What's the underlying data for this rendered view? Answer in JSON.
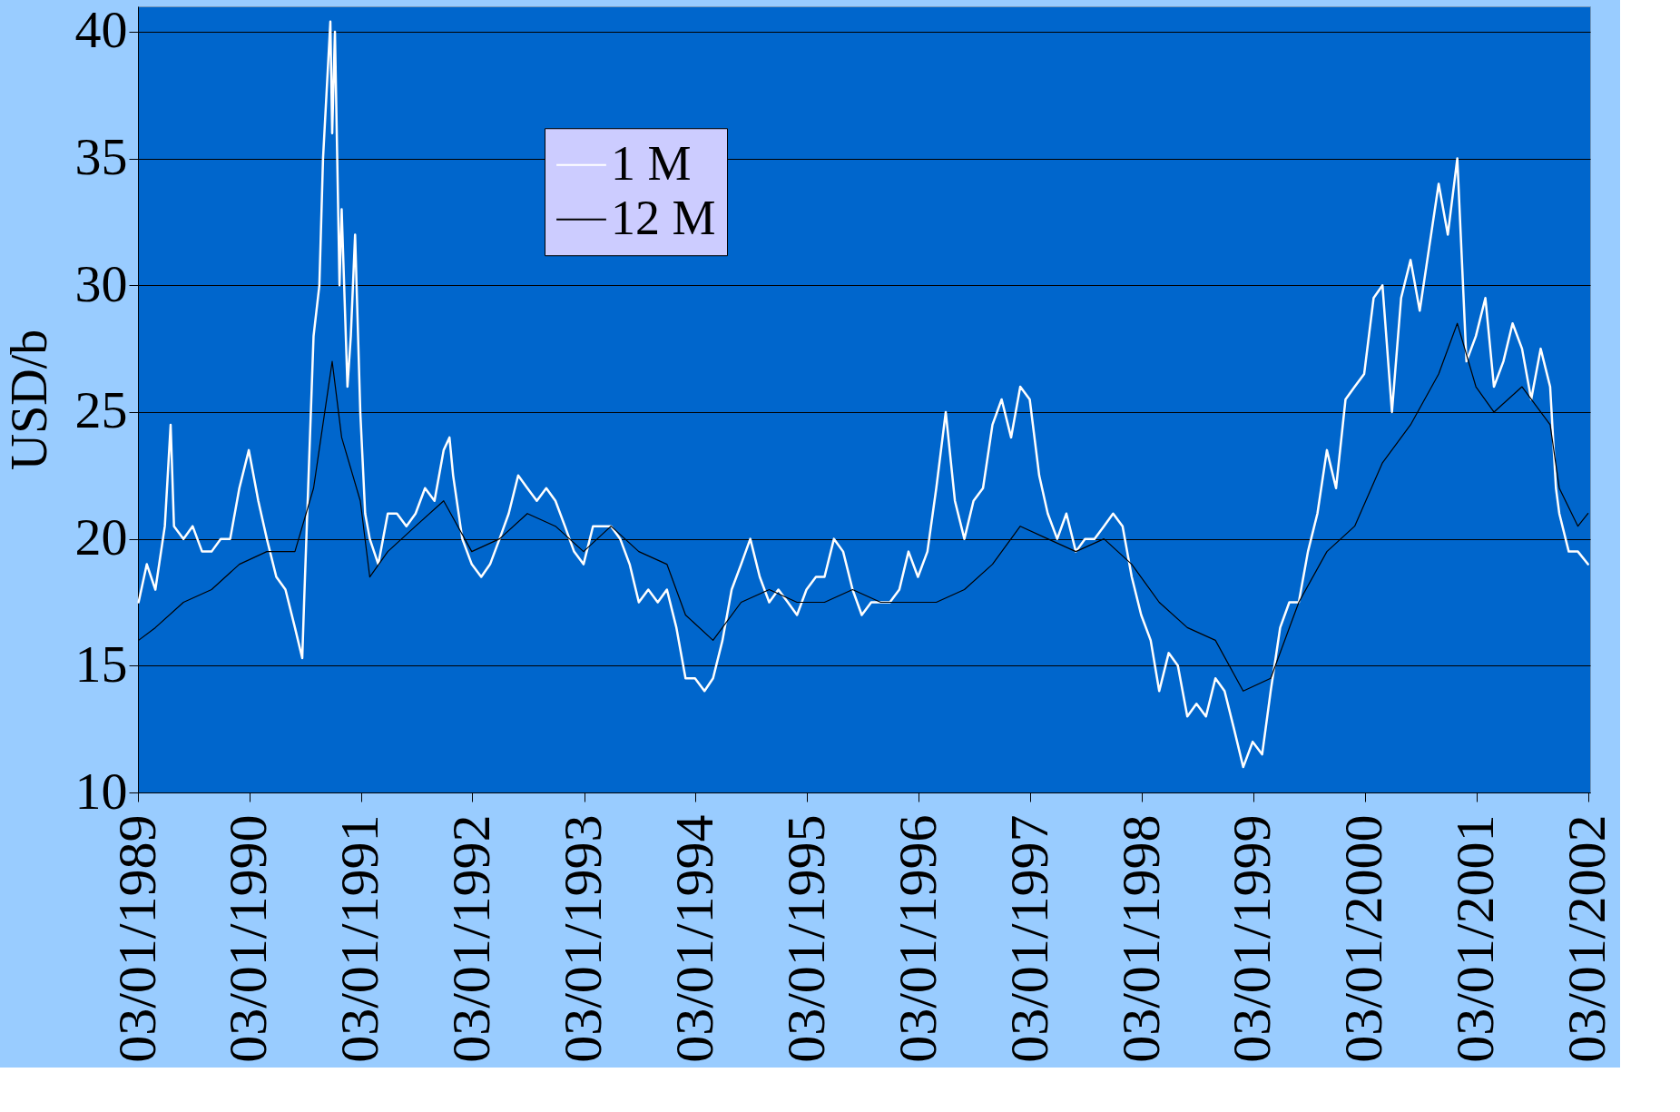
{
  "chart_data": {
    "type": "line",
    "ylabel": "USD/b",
    "legend": "top left",
    "grid": "y",
    "line_style": "solid",
    "marker": "none",
    "xlim": [
      "1989-01-03",
      "2002-01-10"
    ],
    "xticks": [
      {
        "value": "1989-01-03",
        "label": "03/01/1989"
      },
      {
        "value": "1990-01-03",
        "label": "03/01/1990"
      },
      {
        "value": "1991-01-03",
        "label": "03/01/1991"
      },
      {
        "value": "1992-01-03",
        "label": "03/01/1992"
      },
      {
        "value": "1993-01-03",
        "label": "03/01/1993"
      },
      {
        "value": "1994-01-03",
        "label": "03/01/1994"
      },
      {
        "value": "1995-01-03",
        "label": "03/01/1995"
      },
      {
        "value": "1996-01-03",
        "label": "03/01/1996"
      },
      {
        "value": "1997-01-03",
        "label": "03/01/1997"
      },
      {
        "value": "1998-01-03",
        "label": "03/01/1998"
      },
      {
        "value": "1999-01-03",
        "label": "03/01/1999"
      },
      {
        "value": "2000-01-03",
        "label": "03/01/2000"
      },
      {
        "value": "2001-01-03",
        "label": "03/01/2001"
      },
      {
        "value": "2002-01-03",
        "label": "03/01/2002"
      }
    ],
    "ylim": [
      10,
      41
    ],
    "yticks": [
      10,
      15,
      20,
      25,
      30,
      35,
      40
    ],
    "series": [
      {
        "name": "1 M",
        "color": "#ffffff",
        "x": [
          "1989-01-05",
          "1989-02",
          "1989-03",
          "1989-04",
          "1989-04-20",
          "1989-05",
          "1989-06",
          "1989-07",
          "1989-08",
          "1989-09",
          "1989-10",
          "1989-11",
          "1989-12",
          "1990-01",
          "1990-02",
          "1990-03",
          "1990-04",
          "1990-05",
          "1990-06",
          "1990-06-25",
          "1990-07",
          "1990-08",
          "1990-08-20",
          "1990-09",
          "1990-09-25",
          "1990-10",
          "1990-10-10",
          "1990-10-25",
          "1990-11",
          "1990-11-20",
          "1990-12",
          "1990-12-15",
          "1991-01",
          "1991-01-17",
          "1991-02",
          "1991-03",
          "1991-04",
          "1991-05",
          "1991-06",
          "1991-07",
          "1991-08",
          "1991-09",
          "1991-10",
          "1991-10-20",
          "1991-11",
          "1991-12",
          "1992-01",
          "1992-02",
          "1992-03",
          "1992-04",
          "1992-05",
          "1992-06",
          "1992-07",
          "1992-08",
          "1992-09",
          "1992-10",
          "1992-11",
          "1992-12",
          "1993-01",
          "1993-02",
          "1993-03",
          "1993-04",
          "1993-05",
          "1993-06",
          "1993-07",
          "1993-08",
          "1993-09",
          "1993-10",
          "1993-11",
          "1993-12",
          "1994-01",
          "1994-02",
          "1994-03",
          "1994-04",
          "1994-05",
          "1994-06",
          "1994-07",
          "1994-08",
          "1994-09",
          "1994-10",
          "1994-11",
          "1994-12",
          "1995-01",
          "1995-02",
          "1995-03",
          "1995-04",
          "1995-05",
          "1995-06",
          "1995-07",
          "1995-08",
          "1995-09",
          "1995-10",
          "1995-11",
          "1995-12",
          "1996-01",
          "1996-02",
          "1996-03",
          "1996-04",
          "1996-05",
          "1996-06",
          "1996-07",
          "1996-08",
          "1996-09",
          "1996-10",
          "1996-11",
          "1996-12",
          "1997-01",
          "1997-02",
          "1997-03",
          "1997-04",
          "1997-05",
          "1997-06",
          "1997-07",
          "1997-08",
          "1997-09",
          "1997-10",
          "1997-11",
          "1997-12",
          "1998-01",
          "1998-02",
          "1998-03",
          "1998-04",
          "1998-05",
          "1998-06",
          "1998-07",
          "1998-08",
          "1998-09",
          "1998-10",
          "1998-11",
          "1998-12",
          "1999-01",
          "1999-02",
          "1999-03",
          "1999-04",
          "1999-05",
          "1999-06",
          "1999-07",
          "1999-08",
          "1999-09",
          "1999-10",
          "1999-11",
          "1999-12",
          "2000-01",
          "2000-02",
          "2000-03",
          "2000-04",
          "2000-05",
          "2000-06",
          "2000-07",
          "2000-08",
          "2000-09",
          "2000-10",
          "2000-11",
          "2000-12",
          "2001-01",
          "2001-02",
          "2001-03",
          "2001-04",
          "2001-05",
          "2001-06",
          "2001-07",
          "2001-08",
          "2001-09",
          "2001-09-20",
          "2001-10",
          "2001-11",
          "2001-12",
          "2002-01-03"
        ],
        "values": [
          17.5,
          19,
          18,
          20.5,
          24.5,
          20.5,
          20,
          20.5,
          19.5,
          19.5,
          20,
          20,
          22,
          23.5,
          21.5,
          20,
          18.5,
          18,
          16.5,
          15.3,
          17.5,
          28,
          30,
          35,
          40.4,
          36,
          40,
          30,
          33,
          26,
          28,
          32,
          25,
          21,
          20,
          19,
          21,
          21,
          20.5,
          21,
          22,
          21.5,
          23.5,
          24,
          22.5,
          20,
          19,
          18.5,
          19,
          20,
          21,
          22.5,
          22,
          21.5,
          22,
          21.5,
          20.5,
          19.5,
          19,
          20.5,
          20.5,
          20.5,
          20,
          19,
          17.5,
          18,
          17.5,
          18,
          16.5,
          14.5,
          14.5,
          14,
          14.5,
          16,
          18,
          19,
          20,
          18.5,
          17.5,
          18,
          17.5,
          17,
          18,
          18.5,
          18.5,
          20,
          19.5,
          18,
          17,
          17.5,
          17.5,
          17.5,
          18,
          19.5,
          18.5,
          19.5,
          22,
          25,
          21.5,
          20,
          21.5,
          22,
          24.5,
          25.5,
          24,
          26,
          25.5,
          22.5,
          21,
          20,
          21,
          19.5,
          20,
          20,
          20.5,
          21,
          20.5,
          18.5,
          17,
          16,
          14,
          15.5,
          15,
          13,
          13.5,
          13,
          14.5,
          14,
          12.5,
          11,
          12,
          11.5,
          14,
          16.5,
          17.5,
          17.5,
          19.5,
          21,
          23.5,
          22,
          25.5,
          26,
          26.5,
          29.5,
          30,
          25,
          29.5,
          31,
          29,
          31.5,
          34,
          32,
          35,
          27,
          28,
          29.5,
          26,
          27,
          28.5,
          27.5,
          25.5,
          27.5,
          26,
          22,
          21,
          19.5,
          19.5,
          19
        ]
      },
      {
        "name": "12 M",
        "color": "#000000",
        "x": [
          "1989-01-05",
          "1989-03",
          "1989-06",
          "1989-09",
          "1989-12",
          "1990-03",
          "1990-06",
          "1990-08",
          "1990-10",
          "1990-11",
          "1991-01",
          "1991-02",
          "1991-04",
          "1991-07",
          "1991-10",
          "1992-01",
          "1992-04",
          "1992-07",
          "1992-10",
          "1993-01",
          "1993-04",
          "1993-07",
          "1993-10",
          "1993-12",
          "1994-03",
          "1994-06",
          "1994-09",
          "1994-12",
          "1995-03",
          "1995-06",
          "1995-09",
          "1995-12",
          "1996-03",
          "1996-06",
          "1996-09",
          "1996-12",
          "1997-03",
          "1997-06",
          "1997-09",
          "1997-12",
          "1998-03",
          "1998-06",
          "1998-09",
          "1998-12",
          "1999-03",
          "1999-06",
          "1999-09",
          "1999-12",
          "2000-03",
          "2000-06",
          "2000-09",
          "2000-11",
          "2001-01",
          "2001-03",
          "2001-06",
          "2001-09",
          "2001-10",
          "2001-12",
          "2002-01-03"
        ],
        "values": [
          16,
          16.5,
          17.5,
          18,
          19,
          19.5,
          19.5,
          22,
          27,
          24,
          21.5,
          18.5,
          19.5,
          20.5,
          21.5,
          19.5,
          20,
          21,
          20.5,
          19.5,
          20.5,
          19.5,
          19,
          17,
          16,
          17.5,
          18,
          17.5,
          17.5,
          18,
          17.5,
          17.5,
          17.5,
          18,
          19,
          20.5,
          20,
          19.5,
          20,
          19,
          17.5,
          16.5,
          16,
          14,
          14.5,
          17.5,
          19.5,
          20.5,
          23,
          24.5,
          26.5,
          28.5,
          26,
          25,
          26,
          24.5,
          22,
          20.5,
          21
        ]
      }
    ]
  }
}
